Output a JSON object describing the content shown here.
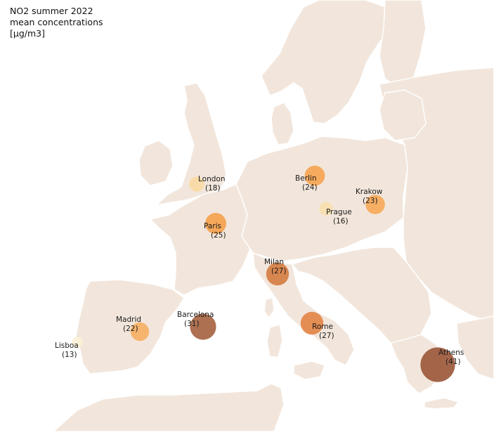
{
  "legend": {
    "line1": "NO2 summer 2022",
    "line2": "mean concentrations",
    "line3": "[µg/m3]"
  },
  "colors": {
    "land": "#f2e6dc",
    "border": "#ffffff",
    "sea": "#ffffff"
  },
  "cities": [
    {
      "name": "London",
      "value": "(18)",
      "no2": 18,
      "color": "#f9d9a3"
    },
    {
      "name": "Paris",
      "value": "(25)",
      "no2": 25,
      "color": "#f5a04b"
    },
    {
      "name": "Madrid",
      "value": "(22)",
      "no2": 22,
      "color": "#f7ae62"
    },
    {
      "name": "Lisboa",
      "value": "(13)",
      "no2": 13,
      "color": "#fbf1d5"
    },
    {
      "name": "Barcelona",
      "value": "(31)",
      "no2": 31,
      "color": "#a4603e"
    },
    {
      "name": "Milan",
      "value": "(27)",
      "no2": 27,
      "color": "#d57b40"
    },
    {
      "name": "Rome",
      "value": "(27)",
      "no2": 27,
      "color": "#e28445"
    },
    {
      "name": "Berlin",
      "value": "(24)",
      "no2": 24,
      "color": "#f5a34f"
    },
    {
      "name": "Prague",
      "value": "(16)",
      "no2": 16,
      "color": "#f9dfae"
    },
    {
      "name": "Krakow",
      "value": "(23)",
      "no2": 23,
      "color": "#f6a956"
    },
    {
      "name": "Athens",
      "value": "(41)",
      "no2": 41,
      "color": "#9a5537"
    }
  ]
}
